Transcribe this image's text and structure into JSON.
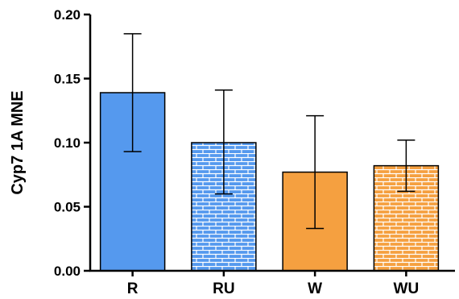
{
  "chart_data": {
    "type": "bar",
    "title": "",
    "xlabel": "",
    "ylabel": "Cyp7 1A MNE",
    "ylim": [
      0,
      0.2
    ],
    "yticks": [
      "0.00",
      "0.05",
      "0.10",
      "0.15",
      "0.20"
    ],
    "categories": [
      "R",
      "RU",
      "W",
      "WU"
    ],
    "values": [
      0.139,
      0.1,
      0.077,
      0.082
    ],
    "error_upper": [
      0.185,
      0.141,
      0.121,
      0.102
    ],
    "error_lower": [
      0.093,
      0.06,
      0.033,
      0.062
    ],
    "fill_styles": [
      "solid",
      "brick",
      "solid",
      "brick"
    ],
    "colors": {
      "blue": "#5599ee",
      "orange": "#f5a040",
      "pattern_line": "#ffffff",
      "axis": "#000000"
    },
    "bar_colors": [
      "blue",
      "blue",
      "orange",
      "orange"
    ],
    "grid": false
  }
}
